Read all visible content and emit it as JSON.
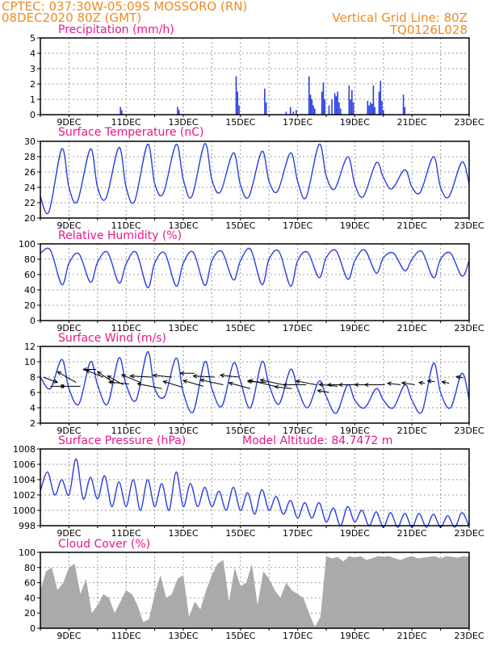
{
  "header": {
    "line1": "CPTEC:  037:30W-05:09S  MOSSORO (RN)",
    "line2": "08DEC2020 80Z (GMT)",
    "right1": "Vertical Grid Line: 80Z",
    "right2": "TQ0126L028"
  },
  "colors": {
    "header": "#f08a24",
    "title": "#e8178a",
    "line": "#2a3fe0",
    "cloud": "#aaaaaa"
  },
  "chart_data": [
    {
      "type": "bar",
      "title": "Precipitation (mm/h)",
      "ylim": [
        0,
        5
      ],
      "yticks": [
        0,
        1,
        2,
        3,
        4,
        5
      ],
      "x_ticks": [
        "9DEC",
        "11DEC",
        "13DEC",
        "15DEC",
        "17DEC",
        "19DEC",
        "21DEC",
        "23DEC"
      ],
      "bars": [
        [
          2.8,
          0.5
        ],
        [
          2.85,
          0.3
        ],
        [
          4.8,
          0.5
        ],
        [
          4.85,
          0.3
        ],
        [
          6.85,
          2.5
        ],
        [
          6.9,
          1.5
        ],
        [
          6.95,
          0.6
        ],
        [
          7.85,
          1.7
        ],
        [
          7.9,
          0.8
        ],
        [
          8.6,
          0.2
        ],
        [
          8.75,
          0.5
        ],
        [
          8.85,
          0.2
        ],
        [
          8.95,
          0.3
        ],
        [
          9.4,
          2.5
        ],
        [
          9.45,
          1.3
        ],
        [
          9.5,
          1.0
        ],
        [
          9.55,
          0.6
        ],
        [
          9.6,
          0.4
        ],
        [
          9.85,
          1.5
        ],
        [
          9.9,
          2.1
        ],
        [
          9.95,
          1.0
        ],
        [
          10.1,
          0.6
        ],
        [
          10.2,
          1.0
        ],
        [
          10.3,
          1.4
        ],
        [
          10.35,
          1.2
        ],
        [
          10.4,
          1.5
        ],
        [
          10.45,
          0.8
        ],
        [
          10.5,
          0.4
        ],
        [
          10.8,
          1.9
        ],
        [
          10.85,
          1.0
        ],
        [
          10.9,
          1.6
        ],
        [
          10.95,
          0.8
        ],
        [
          11.45,
          0.9
        ],
        [
          11.5,
          0.6
        ],
        [
          11.55,
          0.8
        ],
        [
          11.6,
          0.7
        ],
        [
          11.65,
          1.9
        ],
        [
          11.7,
          0.5
        ],
        [
          11.85,
          1.5
        ],
        [
          11.9,
          2.2
        ],
        [
          11.95,
          0.9
        ],
        [
          12.0,
          0.3
        ],
        [
          12.7,
          1.3
        ],
        [
          12.75,
          0.5
        ]
      ]
    },
    {
      "type": "line",
      "title": "Surface Temperature (nC)",
      "ylim": [
        20,
        30
      ],
      "yticks": [
        20,
        22,
        24,
        26,
        28,
        30
      ],
      "x_ticks": [
        "9DEC",
        "11DEC",
        "13DEC",
        "15DEC",
        "17DEC",
        "19DEC",
        "21DEC",
        "23DEC"
      ],
      "x": [
        0.0,
        0.3,
        0.75,
        1.0,
        1.3,
        1.75,
        2.0,
        2.3,
        2.75,
        3.0,
        3.3,
        3.75,
        4.0,
        4.3,
        4.75,
        5.0,
        5.3,
        5.75,
        6.0,
        6.3,
        6.75,
        7.0,
        7.3,
        7.75,
        8.0,
        8.3,
        8.75,
        9.0,
        9.3,
        9.75,
        10.0,
        10.3,
        10.75,
        11.0,
        11.3,
        11.75,
        12.0,
        12.3,
        12.75,
        13.0,
        13.3,
        13.75,
        14.0,
        14.3,
        14.75,
        15.0
      ],
      "y": [
        22.8,
        20.8,
        29.0,
        24.0,
        22.2,
        29.0,
        24.0,
        22.6,
        29.2,
        24.0,
        22.2,
        29.6,
        24.5,
        23.2,
        29.6,
        25.0,
        22.8,
        29.7,
        25.0,
        23.4,
        28.5,
        24.3,
        22.8,
        28.7,
        24.8,
        23.5,
        28.5,
        24.8,
        22.7,
        29.6,
        25.5,
        23.8,
        28.0,
        24.4,
        22.8,
        27.2,
        25.3,
        23.8,
        26.3,
        24.0,
        23.4,
        28.0,
        24.0,
        22.8,
        27.3,
        24.5
      ]
    },
    {
      "type": "line",
      "title": "Relative Humidity (%)",
      "ylim": [
        0,
        100
      ],
      "yticks": [
        0,
        20,
        40,
        60,
        80,
        100
      ],
      "x_ticks": [
        "9DEC",
        "11DEC",
        "13DEC",
        "15DEC",
        "17DEC",
        "19DEC",
        "21DEC",
        "23DEC"
      ],
      "x": [
        0.0,
        0.35,
        0.75,
        1.0,
        1.35,
        1.75,
        2.0,
        2.35,
        2.75,
        3.0,
        3.35,
        3.75,
        4.0,
        4.35,
        4.75,
        5.0,
        5.35,
        5.75,
        6.0,
        6.35,
        6.75,
        7.0,
        7.35,
        7.75,
        8.0,
        8.35,
        8.75,
        9.0,
        9.35,
        9.75,
        10.0,
        10.35,
        10.75,
        11.0,
        11.35,
        11.75,
        12.0,
        12.35,
        12.75,
        13.0,
        13.35,
        13.75,
        14.0,
        14.35,
        14.75,
        15.0
      ],
      "y": [
        88,
        92,
        47,
        75,
        87,
        50,
        76,
        89,
        49,
        74,
        89,
        43,
        75,
        88,
        45,
        75,
        89,
        46,
        78,
        90,
        53,
        78,
        93,
        47,
        80,
        90,
        45,
        78,
        89,
        56,
        82,
        91,
        54,
        78,
        92,
        62,
        82,
        88,
        65,
        80,
        90,
        56,
        80,
        88,
        58,
        78
      ]
    },
    {
      "type": "line",
      "title": "Surface Wind (m/s)",
      "ylim": [
        2,
        12
      ],
      "yticks": [
        2,
        4,
        6,
        8,
        10,
        12
      ],
      "x_ticks": [
        "9DEC",
        "11DEC",
        "13DEC",
        "15DEC",
        "17DEC",
        "19DEC",
        "21DEC",
        "23DEC"
      ],
      "x": [
        0.0,
        0.35,
        0.75,
        1.0,
        1.35,
        1.75,
        2.0,
        2.35,
        2.75,
        3.0,
        3.35,
        3.75,
        4.0,
        4.35,
        4.75,
        5.0,
        5.35,
        5.75,
        6.0,
        6.35,
        6.75,
        7.0,
        7.35,
        7.75,
        8.0,
        8.35,
        8.75,
        9.0,
        9.35,
        9.75,
        10.0,
        10.35,
        10.75,
        11.0,
        11.35,
        11.75,
        12.0,
        12.35,
        12.75,
        13.0,
        13.35,
        13.75,
        14.0,
        14.35,
        14.75,
        15.0
      ],
      "y": [
        8.0,
        6.5,
        10.3,
        6.5,
        4.5,
        10.0,
        7.0,
        4.5,
        10.5,
        7.0,
        5.0,
        11.3,
        6.5,
        5.5,
        10.5,
        6.0,
        3.5,
        10.0,
        6.5,
        4.2,
        9.8,
        7.5,
        4.0,
        10.0,
        7.0,
        4.5,
        9.0,
        6.5,
        4.0,
        7.5,
        5.5,
        3.3,
        7.0,
        5.0,
        4.0,
        6.5,
        5.0,
        4.0,
        7.0,
        5.0,
        3.5,
        9.8,
        6.0,
        4.0,
        8.5,
        5.0
      ],
      "wind_vectors": [
        [
          0.1,
          8.0,
          1.0,
          -1.4
        ],
        [
          0.35,
          6.8,
          1.0,
          0.0
        ],
        [
          1.25,
          7.3,
          -1.3,
          2.8
        ],
        [
          1.4,
          6.8,
          -1.4,
          0.0
        ],
        [
          1.95,
          9.0,
          -0.9,
          0.0
        ],
        [
          2.2,
          8.0,
          -1.2,
          1.8
        ],
        [
          2.6,
          7.2,
          -1.2,
          3.0
        ],
        [
          2.9,
          7.0,
          -1.1,
          2.3
        ],
        [
          3.1,
          7.1,
          -1.4,
          0.5
        ],
        [
          3.5,
          7.3,
          -1.3,
          2.0
        ],
        [
          3.9,
          8.0,
          -1.5,
          0.3
        ],
        [
          4.25,
          6.5,
          -1.7,
          1.3
        ],
        [
          4.6,
          8.0,
          -1.3,
          0.5
        ],
        [
          4.95,
          6.7,
          -1.3,
          1.5
        ],
        [
          5.4,
          8.5,
          -1.0,
          0.0
        ],
        [
          5.7,
          6.8,
          -1.4,
          1.5
        ],
        [
          6.1,
          8.0,
          -1.5,
          0.3
        ],
        [
          6.4,
          7.0,
          -1.6,
          1.3
        ],
        [
          6.95,
          8.0,
          -1.3,
          0.5
        ],
        [
          7.35,
          6.5,
          -1.5,
          1.5
        ],
        [
          7.9,
          7.3,
          -1.3,
          0.3
        ],
        [
          8.2,
          6.8,
          -1.8,
          1.6
        ],
        [
          8.5,
          7.0,
          -1.6,
          1.3
        ],
        [
          8.8,
          6.5,
          -1.2,
          0.5
        ],
        [
          9.3,
          7.0,
          -1.6,
          0.0
        ],
        [
          9.65,
          7.0,
          -1.4,
          1.0
        ],
        [
          10.1,
          6.0,
          -0.8,
          0.5
        ],
        [
          10.4,
          6.8,
          -1.3,
          0.5
        ],
        [
          10.75,
          7.0,
          -1.4,
          0.0
        ],
        [
          11.2,
          7.0,
          -1.5,
          0.0
        ],
        [
          11.6,
          7.0,
          -1.2,
          0.0
        ],
        [
          12.05,
          7.0,
          -1.4,
          0.0
        ],
        [
          12.6,
          7.0,
          -0.9,
          0.4
        ],
        [
          13.1,
          7.0,
          -0.9,
          0.5
        ],
        [
          13.45,
          7.2,
          -0.4,
          0.2
        ],
        [
          13.8,
          7.4,
          -0.5,
          0.2
        ],
        [
          14.3,
          7.2,
          -0.5,
          0.4
        ],
        [
          14.8,
          7.9,
          -0.5,
          0.3
        ]
      ]
    },
    {
      "type": "line",
      "title": "Surface Pressure (hPa)",
      "annotation": "Model Altitude: 84.7472 m",
      "ylim": [
        998,
        1008
      ],
      "yticks": [
        998,
        1000,
        1002,
        1004,
        1006,
        1008
      ],
      "x_ticks": [
        "9DEC",
        "11DEC",
        "13DEC",
        "15DEC",
        "17DEC",
        "19DEC",
        "21DEC",
        "23DEC"
      ],
      "x": [
        0.0,
        0.25,
        0.5,
        0.75,
        1.0,
        1.25,
        1.5,
        1.75,
        2.0,
        2.25,
        2.5,
        2.75,
        3.0,
        3.25,
        3.5,
        3.75,
        4.0,
        4.25,
        4.5,
        4.75,
        5.0,
        5.25,
        5.5,
        5.75,
        6.0,
        6.25,
        6.5,
        6.75,
        7.0,
        7.25,
        7.5,
        7.75,
        8.0,
        8.25,
        8.5,
        8.75,
        9.0,
        9.25,
        9.5,
        9.75,
        10.0,
        10.25,
        10.5,
        10.75,
        11.0,
        11.25,
        11.5,
        11.75,
        12.0,
        12.25,
        12.5,
        12.75,
        13.0,
        13.25,
        13.5,
        13.75,
        14.0,
        14.25,
        14.5,
        14.75,
        15.0
      ],
      "y": [
        1002.5,
        1005.0,
        1002.0,
        1004.0,
        1002.0,
        1006.7,
        1001.5,
        1004.3,
        1001.5,
        1004.5,
        1000.5,
        1003.7,
        1000.5,
        1004.0,
        1000.0,
        1004.0,
        1000.5,
        1003.5,
        1000.0,
        1005.0,
        1000.5,
        1003.5,
        1000.5,
        1003.0,
        1000.5,
        1002.5,
        1000.0,
        1003.0,
        1000.0,
        1002.3,
        999.5,
        1002.7,
        1000.0,
        1001.8,
        999.5,
        1001.3,
        999.0,
        1001.0,
        999.0,
        1001.0,
        998.5,
        1000.3,
        998.0,
        1000.5,
        998.5,
        1000.0,
        998.0,
        999.8,
        997.8,
        999.7,
        997.8,
        999.6,
        997.8,
        999.6,
        997.8,
        999.5,
        997.8,
        999.3,
        997.8,
        999.7,
        997.9
      ]
    },
    {
      "type": "area",
      "title": "Cloud Cover (%)",
      "ylim": [
        0,
        100
      ],
      "yticks": [
        0,
        20,
        40,
        60,
        80,
        100
      ],
      "x_ticks": [
        "9DEC",
        "11DEC",
        "13DEC",
        "15DEC",
        "17DEC",
        "19DEC",
        "21DEC",
        "23DEC"
      ],
      "x": [
        0.0,
        0.2,
        0.4,
        0.6,
        0.8,
        1.0,
        1.2,
        1.4,
        1.6,
        1.8,
        2.0,
        2.2,
        2.4,
        2.6,
        2.8,
        3.0,
        3.2,
        3.4,
        3.6,
        3.8,
        4.0,
        4.2,
        4.4,
        4.6,
        4.8,
        5.0,
        5.2,
        5.4,
        5.6,
        5.8,
        6.0,
        6.2,
        6.4,
        6.6,
        6.8,
        7.0,
        7.2,
        7.4,
        7.6,
        7.8,
        8.0,
        8.2,
        8.4,
        8.6,
        8.8,
        9.0,
        9.2,
        9.4,
        9.6,
        9.8,
        10.0,
        10.2,
        10.4,
        10.6,
        10.8,
        11.0,
        11.2,
        11.4,
        11.6,
        11.8,
        12.0,
        12.2,
        12.4,
        12.6,
        12.8,
        13.0,
        13.2,
        13.4,
        13.6,
        13.8,
        14.0,
        14.2,
        14.4,
        14.6,
        14.8,
        15.0
      ],
      "y": [
        50,
        75,
        80,
        50,
        60,
        80,
        85,
        45,
        65,
        20,
        30,
        45,
        40,
        20,
        35,
        50,
        45,
        30,
        8,
        12,
        45,
        70,
        40,
        45,
        65,
        70,
        15,
        35,
        25,
        50,
        70,
        85,
        90,
        35,
        80,
        55,
        60,
        85,
        30,
        75,
        65,
        50,
        40,
        60,
        50,
        45,
        40,
        20,
        2,
        15,
        95,
        92,
        94,
        88,
        95,
        93,
        95,
        90,
        92,
        95,
        94,
        95,
        92,
        90,
        93,
        95,
        92,
        93,
        94,
        95,
        92,
        95,
        94,
        93,
        95,
        94
      ]
    }
  ]
}
